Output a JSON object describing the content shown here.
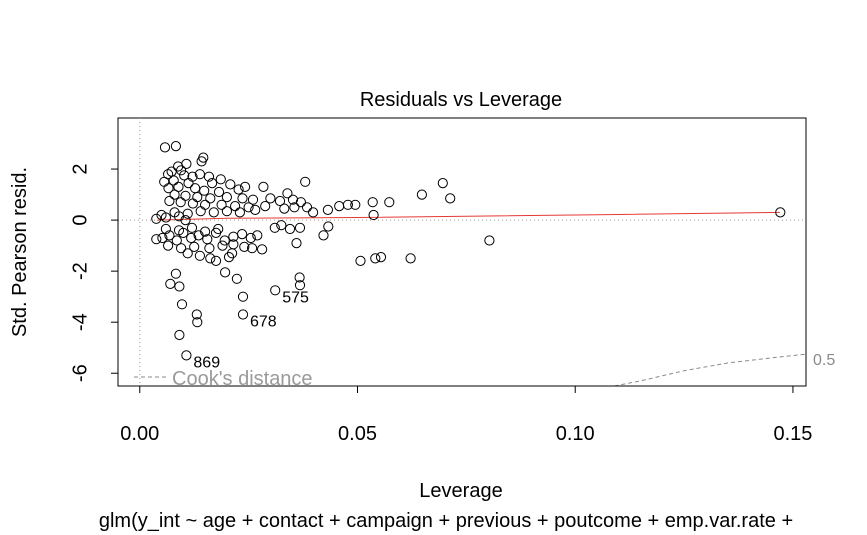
{
  "chart_data": {
    "type": "scatter",
    "title": "Residuals vs Leverage",
    "xlabel": "Leverage",
    "ylabel": "Std. Pearson resid.",
    "subtitle": "glm(y_int ~ age + contact + campaign + previous + poutcome + emp.var.rate +",
    "xlim": [
      -0.005,
      0.153
    ],
    "ylim": [
      -6.5,
      4.0
    ],
    "x_ticks": [
      0.0,
      0.05,
      0.1,
      0.15
    ],
    "x_tick_labels": [
      "0.00",
      "0.05",
      "0.10",
      "0.15"
    ],
    "y_ticks": [
      -6,
      -4,
      -2,
      0,
      2
    ],
    "y_tick_labels": [
      "-6",
      "-4",
      "-2",
      "0",
      "2"
    ],
    "grid": false,
    "legend": {
      "position": "bottom-left",
      "entries": [
        "Cook's distance"
      ]
    },
    "cooks_contour_label": "0.5",
    "cooks_contour": [
      {
        "x": 0.109,
        "y": -6.5
      },
      {
        "x": 0.115,
        "y": -6.3
      },
      {
        "x": 0.125,
        "y": -5.9
      },
      {
        "x": 0.135,
        "y": -5.6
      },
      {
        "x": 0.145,
        "y": -5.4
      },
      {
        "x": 0.153,
        "y": -5.25
      }
    ],
    "smoother": [
      {
        "x": 0.004,
        "y": 0.0
      },
      {
        "x": 0.02,
        "y": 0.07
      },
      {
        "x": 0.05,
        "y": 0.1
      },
      {
        "x": 0.08,
        "y": 0.16
      },
      {
        "x": 0.11,
        "y": 0.22
      },
      {
        "x": 0.147,
        "y": 0.3
      }
    ],
    "labeled_points": [
      {
        "label": "575",
        "x": 0.0311,
        "y": -2.75
      },
      {
        "label": "678",
        "x": 0.0237,
        "y": -3.7
      },
      {
        "label": "869",
        "x": 0.0107,
        "y": -5.3
      }
    ],
    "points": [
      {
        "x": 0.0058,
        "y": 2.85
      },
      {
        "x": 0.0083,
        "y": 2.9
      },
      {
        "x": 0.0146,
        "y": 2.45
      },
      {
        "x": 0.0142,
        "y": 2.3
      },
      {
        "x": 0.0107,
        "y": 2.2
      },
      {
        "x": 0.0088,
        "y": 2.1
      },
      {
        "x": 0.0095,
        "y": 1.95
      },
      {
        "x": 0.0073,
        "y": 1.9
      },
      {
        "x": 0.0065,
        "y": 1.8
      },
      {
        "x": 0.0102,
        "y": 1.75
      },
      {
        "x": 0.0121,
        "y": 1.7
      },
      {
        "x": 0.0138,
        "y": 1.8
      },
      {
        "x": 0.0159,
        "y": 1.7
      },
      {
        "x": 0.0186,
        "y": 1.6
      },
      {
        "x": 0.0078,
        "y": 1.55
      },
      {
        "x": 0.0056,
        "y": 1.5
      },
      {
        "x": 0.0112,
        "y": 1.45
      },
      {
        "x": 0.0166,
        "y": 1.45
      },
      {
        "x": 0.0208,
        "y": 1.4
      },
      {
        "x": 0.0227,
        "y": 1.2
      },
      {
        "x": 0.0242,
        "y": 1.3
      },
      {
        "x": 0.0089,
        "y": 1.3
      },
      {
        "x": 0.0066,
        "y": 1.25
      },
      {
        "x": 0.0127,
        "y": 1.25
      },
      {
        "x": 0.0148,
        "y": 1.15
      },
      {
        "x": 0.0182,
        "y": 1.1
      },
      {
        "x": 0.0284,
        "y": 1.3
      },
      {
        "x": 0.0339,
        "y": 1.05
      },
      {
        "x": 0.038,
        "y": 1.5
      },
      {
        "x": 0.0648,
        "y": 1.0
      },
      {
        "x": 0.0696,
        "y": 1.45
      },
      {
        "x": 0.0713,
        "y": 0.85
      },
      {
        "x": 0.008,
        "y": 1.0
      },
      {
        "x": 0.0105,
        "y": 0.95
      },
      {
        "x": 0.0132,
        "y": 0.9
      },
      {
        "x": 0.0162,
        "y": 0.85
      },
      {
        "x": 0.02,
        "y": 0.9
      },
      {
        "x": 0.0236,
        "y": 0.85
      },
      {
        "x": 0.026,
        "y": 0.8
      },
      {
        "x": 0.03,
        "y": 0.85
      },
      {
        "x": 0.0322,
        "y": 0.75
      },
      {
        "x": 0.0352,
        "y": 0.8
      },
      {
        "x": 0.037,
        "y": 0.7
      },
      {
        "x": 0.0068,
        "y": 0.75
      },
      {
        "x": 0.0094,
        "y": 0.7
      },
      {
        "x": 0.0122,
        "y": 0.65
      },
      {
        "x": 0.015,
        "y": 0.6
      },
      {
        "x": 0.0188,
        "y": 0.6
      },
      {
        "x": 0.0219,
        "y": 0.55
      },
      {
        "x": 0.025,
        "y": 0.5
      },
      {
        "x": 0.0288,
        "y": 0.55
      },
      {
        "x": 0.0332,
        "y": 0.45
      },
      {
        "x": 0.0355,
        "y": 0.5
      },
      {
        "x": 0.0384,
        "y": 0.5
      },
      {
        "x": 0.0398,
        "y": 0.3
      },
      {
        "x": 0.0432,
        "y": 0.4
      },
      {
        "x": 0.0458,
        "y": 0.55
      },
      {
        "x": 0.0478,
        "y": 0.6
      },
      {
        "x": 0.0495,
        "y": 0.6
      },
      {
        "x": 0.0535,
        "y": 0.7
      },
      {
        "x": 0.0537,
        "y": 0.2
      },
      {
        "x": 0.0573,
        "y": 0.7
      },
      {
        "x": 0.1471,
        "y": 0.3
      },
      {
        "x": 0.005,
        "y": 0.2
      },
      {
        "x": 0.008,
        "y": 0.3
      },
      {
        "x": 0.011,
        "y": 0.25
      },
      {
        "x": 0.014,
        "y": 0.35
      },
      {
        "x": 0.017,
        "y": 0.3
      },
      {
        "x": 0.02,
        "y": 0.35
      },
      {
        "x": 0.023,
        "y": 0.3
      },
      {
        "x": 0.0265,
        "y": 0.4
      },
      {
        "x": 0.0038,
        "y": 0.05
      },
      {
        "x": 0.006,
        "y": 0.1
      },
      {
        "x": 0.009,
        "y": 0.15
      },
      {
        "x": 0.0105,
        "y": 0.0
      },
      {
        "x": 0.031,
        "y": -0.3
      },
      {
        "x": 0.0325,
        "y": -0.2
      },
      {
        "x": 0.0345,
        "y": -0.35
      },
      {
        "x": 0.0368,
        "y": -0.3
      },
      {
        "x": 0.036,
        "y": -0.9
      },
      {
        "x": 0.0422,
        "y": -0.6
      },
      {
        "x": 0.0433,
        "y": -0.25
      },
      {
        "x": 0.0803,
        "y": -0.8
      },
      {
        "x": 0.0038,
        "y": -0.75
      },
      {
        "x": 0.0052,
        "y": -0.7
      },
      {
        "x": 0.0068,
        "y": -0.6
      },
      {
        "x": 0.0085,
        "y": -0.8
      },
      {
        "x": 0.01,
        "y": -0.5
      },
      {
        "x": 0.0118,
        "y": -0.7
      },
      {
        "x": 0.0135,
        "y": -0.6
      },
      {
        "x": 0.0155,
        "y": -0.75
      },
      {
        "x": 0.0175,
        "y": -0.5
      },
      {
        "x": 0.0195,
        "y": -0.8
      },
      {
        "x": 0.0215,
        "y": -0.65
      },
      {
        "x": 0.0235,
        "y": -0.55
      },
      {
        "x": 0.0255,
        "y": -0.7
      },
      {
        "x": 0.027,
        "y": -0.6
      },
      {
        "x": 0.006,
        "y": -0.35
      },
      {
        "x": 0.009,
        "y": -0.4
      },
      {
        "x": 0.012,
        "y": -0.3
      },
      {
        "x": 0.015,
        "y": -0.45
      },
      {
        "x": 0.018,
        "y": -0.35
      },
      {
        "x": 0.0065,
        "y": -1.0
      },
      {
        "x": 0.0095,
        "y": -1.1
      },
      {
        "x": 0.0125,
        "y": -1.05
      },
      {
        "x": 0.016,
        "y": -1.1
      },
      {
        "x": 0.019,
        "y": -1.0
      },
      {
        "x": 0.0215,
        "y": -0.95
      },
      {
        "x": 0.024,
        "y": -1.05
      },
      {
        "x": 0.0258,
        "y": -1.1
      },
      {
        "x": 0.0281,
        "y": -1.15
      },
      {
        "x": 0.011,
        "y": -1.3
      },
      {
        "x": 0.0138,
        "y": -1.4
      },
      {
        "x": 0.0162,
        "y": -1.5
      },
      {
        "x": 0.0175,
        "y": -1.6
      },
      {
        "x": 0.0205,
        "y": -1.45
      },
      {
        "x": 0.0212,
        "y": -1.3
      },
      {
        "x": 0.0507,
        "y": -1.6
      },
      {
        "x": 0.0541,
        "y": -1.5
      },
      {
        "x": 0.0554,
        "y": -1.45
      },
      {
        "x": 0.0622,
        "y": -1.5
      },
      {
        "x": 0.0196,
        "y": -2.05
      },
      {
        "x": 0.0223,
        "y": -2.3
      },
      {
        "x": 0.0083,
        "y": -2.1
      },
      {
        "x": 0.007,
        "y": -2.5
      },
      {
        "x": 0.0091,
        "y": -2.6
      },
      {
        "x": 0.0367,
        "y": -2.25
      },
      {
        "x": 0.0368,
        "y": -2.55
      },
      {
        "x": 0.0237,
        "y": -3.0
      },
      {
        "x": 0.0311,
        "y": -2.75
      },
      {
        "x": 0.0097,
        "y": -3.3
      },
      {
        "x": 0.0131,
        "y": -3.7
      },
      {
        "x": 0.0132,
        "y": -4.0
      },
      {
        "x": 0.0237,
        "y": -3.7
      },
      {
        "x": 0.0091,
        "y": -4.5
      },
      {
        "x": 0.0107,
        "y": -5.3
      }
    ]
  }
}
